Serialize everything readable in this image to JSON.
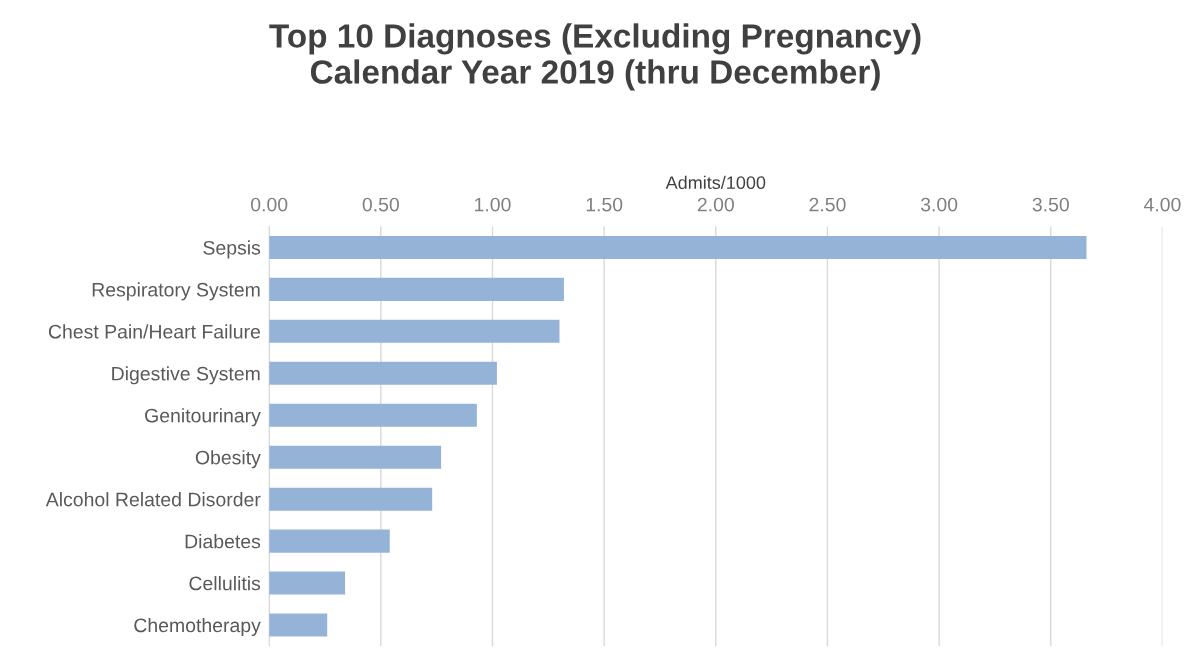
{
  "chart_data": {
    "type": "bar",
    "orientation": "horizontal",
    "title": "Top 10 Diagnoses (Excluding Pregnancy)\nCalendar Year 2019 (thru December)",
    "xlabel": "Admits/1000",
    "categories": [
      "Sepsis",
      "Respiratory System",
      "Chest Pain/Heart Failure",
      "Digestive System",
      "Genitourinary",
      "Obesity",
      "Alcohol Related Disorder",
      "Diabetes",
      "Cellulitis",
      "Chemotherapy"
    ],
    "values": [
      3.66,
      1.32,
      1.3,
      1.02,
      0.93,
      0.77,
      0.73,
      0.54,
      0.34,
      0.26
    ],
    "color": "#95b3d7",
    "xlim": [
      0,
      4
    ],
    "xticks": [
      {
        "value": 0,
        "label": "0.00"
      },
      {
        "value": 0.5,
        "label": "0.50"
      },
      {
        "value": 1,
        "label": "1.00"
      },
      {
        "value": 1.5,
        "label": "1.50"
      },
      {
        "value": 2,
        "label": "2.00"
      },
      {
        "value": 2.5,
        "label": "2.50"
      },
      {
        "value": 3,
        "label": "3.00"
      },
      {
        "value": 3.5,
        "label": "3.50"
      },
      {
        "value": 4,
        "label": "4.00"
      }
    ],
    "grid": "x"
  }
}
